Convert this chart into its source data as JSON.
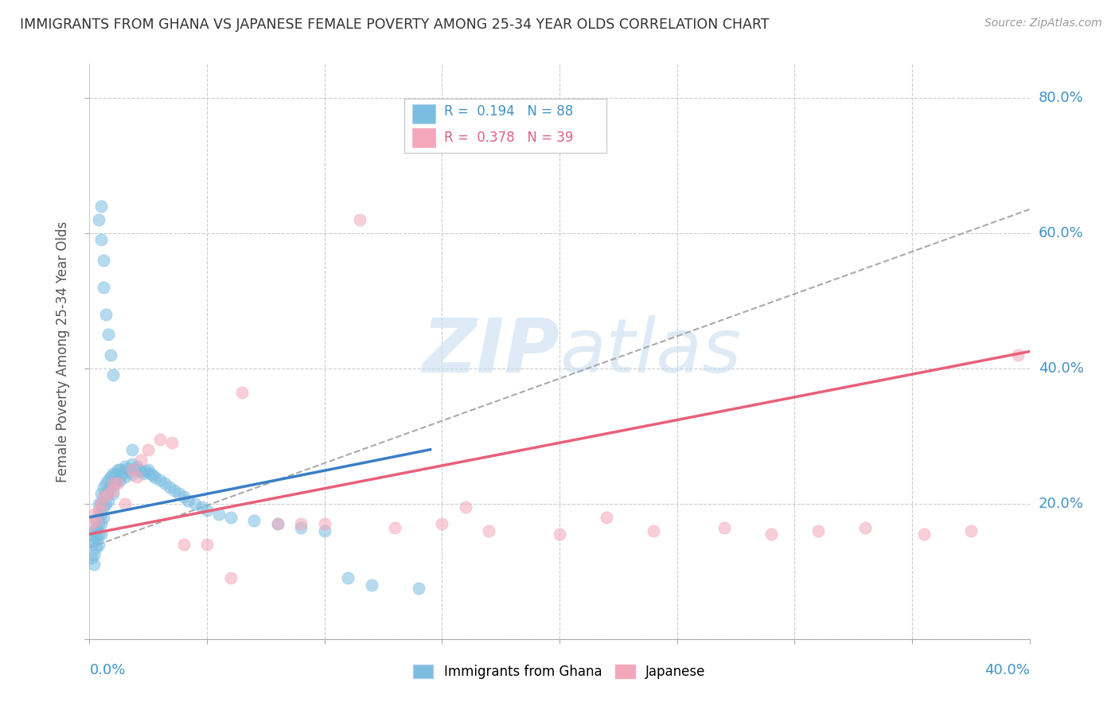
{
  "title": "IMMIGRANTS FROM GHANA VS JAPANESE FEMALE POVERTY AMONG 25-34 YEAR OLDS CORRELATION CHART",
  "source": "Source: ZipAtlas.com",
  "ylabel": "Female Poverty Among 25-34 Year Olds",
  "xlim": [
    0.0,
    0.4
  ],
  "ylim": [
    0.0,
    0.85
  ],
  "xticks": [
    0.0,
    0.05,
    0.1,
    0.15,
    0.2,
    0.25,
    0.3,
    0.35,
    0.4
  ],
  "yticks": [
    0.0,
    0.2,
    0.4,
    0.6,
    0.8
  ],
  "yticklabels": [
    "",
    "20.0%",
    "40.0%",
    "60.0%",
    "80.0%"
  ],
  "legend_r1": "R =  0.194",
  "legend_n1": "N = 88",
  "legend_r2": "R =  0.378",
  "legend_n2": "N = 39",
  "blue_color": "#7bbde0",
  "pink_color": "#f4a7bb",
  "blue_line_color": "#3a7ec6",
  "pink_line_color": "#e8607a",
  "dash_line_color": "#aaaaaa",
  "watermark": "ZIPatlas",
  "blue_x": [
    0.001,
    0.001,
    0.001,
    0.002,
    0.002,
    0.002,
    0.002,
    0.003,
    0.003,
    0.003,
    0.003,
    0.004,
    0.004,
    0.004,
    0.004,
    0.004,
    0.005,
    0.005,
    0.005,
    0.005,
    0.005,
    0.006,
    0.006,
    0.006,
    0.006,
    0.007,
    0.007,
    0.007,
    0.008,
    0.008,
    0.008,
    0.009,
    0.009,
    0.01,
    0.01,
    0.01,
    0.011,
    0.011,
    0.012,
    0.012,
    0.013,
    0.013,
    0.014,
    0.015,
    0.015,
    0.016,
    0.017,
    0.018,
    0.018,
    0.019,
    0.02,
    0.021,
    0.022,
    0.023,
    0.024,
    0.025,
    0.026,
    0.027,
    0.028,
    0.03,
    0.032,
    0.034,
    0.036,
    0.038,
    0.04,
    0.042,
    0.045,
    0.048,
    0.05,
    0.055,
    0.06,
    0.07,
    0.08,
    0.09,
    0.1,
    0.11,
    0.12,
    0.14,
    0.004,
    0.005,
    0.005,
    0.006,
    0.006,
    0.007,
    0.008,
    0.009,
    0.01,
    0.018
  ],
  "blue_y": [
    0.155,
    0.14,
    0.12,
    0.16,
    0.145,
    0.125,
    0.11,
    0.175,
    0.165,
    0.15,
    0.135,
    0.2,
    0.185,
    0.17,
    0.155,
    0.14,
    0.215,
    0.2,
    0.185,
    0.17,
    0.155,
    0.225,
    0.21,
    0.195,
    0.18,
    0.23,
    0.215,
    0.2,
    0.235,
    0.22,
    0.205,
    0.24,
    0.225,
    0.245,
    0.23,
    0.215,
    0.245,
    0.23,
    0.25,
    0.235,
    0.25,
    0.235,
    0.245,
    0.255,
    0.24,
    0.252,
    0.248,
    0.258,
    0.243,
    0.252,
    0.255,
    0.25,
    0.248,
    0.245,
    0.248,
    0.25,
    0.245,
    0.242,
    0.238,
    0.235,
    0.23,
    0.225,
    0.22,
    0.215,
    0.21,
    0.205,
    0.2,
    0.195,
    0.19,
    0.185,
    0.18,
    0.175,
    0.17,
    0.165,
    0.16,
    0.09,
    0.08,
    0.075,
    0.62,
    0.64,
    0.59,
    0.56,
    0.52,
    0.48,
    0.45,
    0.42,
    0.39,
    0.28
  ],
  "pink_x": [
    0.001,
    0.002,
    0.003,
    0.004,
    0.005,
    0.006,
    0.008,
    0.01,
    0.012,
    0.015,
    0.018,
    0.022,
    0.025,
    0.03,
    0.04,
    0.05,
    0.065,
    0.08,
    0.09,
    0.1,
    0.115,
    0.13,
    0.15,
    0.17,
    0.2,
    0.22,
    0.24,
    0.27,
    0.29,
    0.31,
    0.33,
    0.355,
    0.375,
    0.395,
    0.01,
    0.02,
    0.035,
    0.06,
    0.16
  ],
  "pink_y": [
    0.17,
    0.185,
    0.175,
    0.19,
    0.2,
    0.21,
    0.215,
    0.22,
    0.23,
    0.2,
    0.25,
    0.265,
    0.28,
    0.295,
    0.14,
    0.14,
    0.365,
    0.17,
    0.17,
    0.17,
    0.62,
    0.165,
    0.17,
    0.16,
    0.155,
    0.18,
    0.16,
    0.165,
    0.155,
    0.16,
    0.165,
    0.155,
    0.16,
    0.42,
    0.23,
    0.24,
    0.29,
    0.09,
    0.195
  ],
  "blue_trend_x": [
    0.0,
    0.145
  ],
  "blue_trend_y": [
    0.18,
    0.28
  ],
  "pink_trend_x": [
    0.0,
    0.4
  ],
  "pink_trend_y": [
    0.155,
    0.425
  ],
  "dash_trend_x": [
    0.0,
    0.4
  ],
  "dash_trend_y": [
    0.135,
    0.635
  ]
}
